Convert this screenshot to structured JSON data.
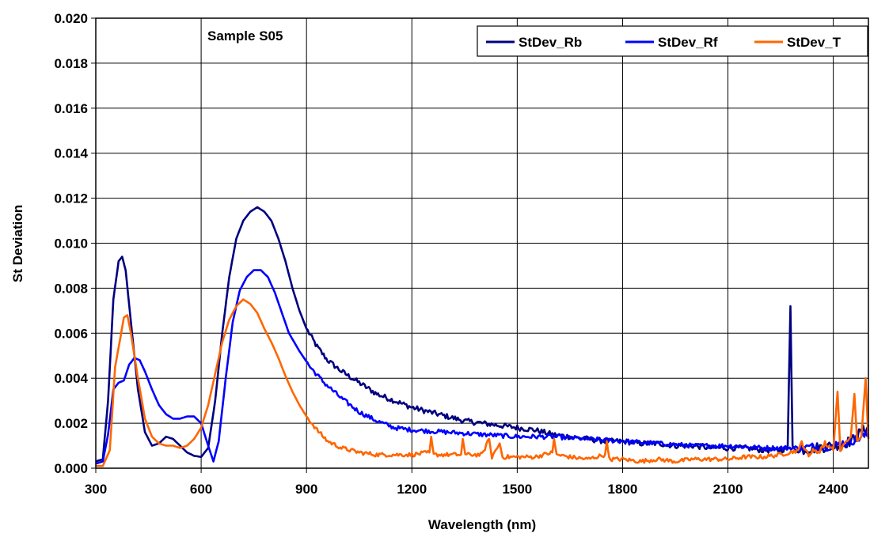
{
  "chart_data": {
    "type": "line",
    "annotation": "Sample S05",
    "xlabel": "Wavelength (nm)",
    "ylabel": "St Deviation",
    "xlim": [
      300,
      2500
    ],
    "ylim": [
      0,
      0.02
    ],
    "x_ticks": [
      "300",
      "600",
      "900",
      "1200",
      "1500",
      "1800",
      "2100",
      "2400"
    ],
    "y_ticks": [
      "0.000",
      "0.002",
      "0.004",
      "0.006",
      "0.008",
      "0.010",
      "0.012",
      "0.014",
      "0.016",
      "0.018",
      "0.020"
    ],
    "grid": true,
    "legend_position": "top-right",
    "series": [
      {
        "name": "StDev_Rb",
        "color": "#000080",
        "points": [
          [
            300,
            0.0003
          ],
          [
            320,
            0.0004
          ],
          [
            335,
            0.003
          ],
          [
            350,
            0.0075
          ],
          [
            365,
            0.0092
          ],
          [
            375,
            0.0094
          ],
          [
            385,
            0.0088
          ],
          [
            400,
            0.0065
          ],
          [
            420,
            0.0035
          ],
          [
            440,
            0.0016
          ],
          [
            460,
            0.001
          ],
          [
            480,
            0.0011
          ],
          [
            500,
            0.0014
          ],
          [
            520,
            0.0013
          ],
          [
            540,
            0.001
          ],
          [
            560,
            0.0007
          ],
          [
            580,
            0.00055
          ],
          [
            600,
            0.0005
          ],
          [
            620,
            0.0009
          ],
          [
            640,
            0.003
          ],
          [
            660,
            0.006
          ],
          [
            680,
            0.0085
          ],
          [
            700,
            0.0102
          ],
          [
            720,
            0.011
          ],
          [
            740,
            0.0114
          ],
          [
            760,
            0.0116
          ],
          [
            780,
            0.0114
          ],
          [
            800,
            0.011
          ],
          [
            820,
            0.0102
          ],
          [
            840,
            0.0092
          ],
          [
            860,
            0.008
          ],
          [
            880,
            0.007
          ],
          [
            900,
            0.0062
          ],
          [
            930,
            0.0054
          ],
          [
            960,
            0.0048
          ],
          [
            1000,
            0.0043
          ],
          [
            1050,
            0.0038
          ],
          [
            1100,
            0.0033
          ],
          [
            1150,
            0.003
          ],
          [
            1200,
            0.0027
          ],
          [
            1250,
            0.0025
          ],
          [
            1300,
            0.0023
          ],
          [
            1350,
            0.0021
          ],
          [
            1400,
            0.002
          ],
          [
            1450,
            0.0019
          ],
          [
            1500,
            0.0018
          ],
          [
            1550,
            0.0017
          ],
          [
            1600,
            0.0015
          ],
          [
            1650,
            0.0014
          ],
          [
            1700,
            0.0013
          ],
          [
            1750,
            0.0012
          ],
          [
            1800,
            0.0012
          ],
          [
            1850,
            0.0011
          ],
          [
            1900,
            0.0011
          ],
          [
            1950,
            0.001
          ],
          [
            2000,
            0.001
          ],
          [
            2050,
            0.0009
          ],
          [
            2100,
            0.0009
          ],
          [
            2150,
            0.0009
          ],
          [
            2200,
            0.0008
          ],
          [
            2250,
            0.0008
          ],
          [
            2270,
            0.0009
          ],
          [
            2278,
            0.0072
          ],
          [
            2284,
            0.0009
          ],
          [
            2300,
            0.0008
          ],
          [
            2350,
            0.0009
          ],
          [
            2400,
            0.001
          ],
          [
            2450,
            0.0012
          ],
          [
            2500,
            0.0019
          ]
        ]
      },
      {
        "name": "StDev_Rf",
        "color": "#0000ff",
        "points": [
          [
            300,
            0.0002
          ],
          [
            320,
            0.0003
          ],
          [
            335,
            0.0015
          ],
          [
            350,
            0.0035
          ],
          [
            365,
            0.0038
          ],
          [
            380,
            0.0039
          ],
          [
            395,
            0.0046
          ],
          [
            410,
            0.0049
          ],
          [
            425,
            0.0048
          ],
          [
            440,
            0.0043
          ],
          [
            460,
            0.0035
          ],
          [
            480,
            0.0028
          ],
          [
            500,
            0.0024
          ],
          [
            520,
            0.0022
          ],
          [
            540,
            0.0022
          ],
          [
            560,
            0.0023
          ],
          [
            580,
            0.0023
          ],
          [
            600,
            0.002
          ],
          [
            620,
            0.001
          ],
          [
            635,
            0.0003
          ],
          [
            650,
            0.0012
          ],
          [
            670,
            0.004
          ],
          [
            690,
            0.0065
          ],
          [
            710,
            0.0079
          ],
          [
            730,
            0.0085
          ],
          [
            750,
            0.0088
          ],
          [
            770,
            0.0088
          ],
          [
            790,
            0.0085
          ],
          [
            810,
            0.0078
          ],
          [
            830,
            0.0069
          ],
          [
            850,
            0.006
          ],
          [
            880,
            0.0052
          ],
          [
            910,
            0.0045
          ],
          [
            950,
            0.0038
          ],
          [
            1000,
            0.0031
          ],
          [
            1050,
            0.0025
          ],
          [
            1100,
            0.0021
          ],
          [
            1150,
            0.0018
          ],
          [
            1200,
            0.0017
          ],
          [
            1300,
            0.0016
          ],
          [
            1400,
            0.0015
          ],
          [
            1500,
            0.0014
          ],
          [
            1600,
            0.0014
          ],
          [
            1700,
            0.0013
          ],
          [
            1800,
            0.0012
          ],
          [
            1900,
            0.0011
          ],
          [
            2000,
            0.001
          ],
          [
            2100,
            0.001
          ],
          [
            2200,
            0.0009
          ],
          [
            2300,
            0.0009
          ],
          [
            2400,
            0.001
          ],
          [
            2450,
            0.0012
          ],
          [
            2500,
            0.0015
          ]
        ]
      },
      {
        "name": "StDev_T",
        "color": "#ff6600",
        "points": [
          [
            300,
            0.0001
          ],
          [
            320,
            0.0001
          ],
          [
            340,
            0.0008
          ],
          [
            355,
            0.0045
          ],
          [
            370,
            0.0058
          ],
          [
            380,
            0.0067
          ],
          [
            390,
            0.0068
          ],
          [
            400,
            0.006
          ],
          [
            420,
            0.004
          ],
          [
            440,
            0.0022
          ],
          [
            460,
            0.0014
          ],
          [
            480,
            0.0011
          ],
          [
            500,
            0.001
          ],
          [
            520,
            0.001
          ],
          [
            540,
            0.0009
          ],
          [
            560,
            0.001
          ],
          [
            580,
            0.0013
          ],
          [
            600,
            0.0018
          ],
          [
            620,
            0.0028
          ],
          [
            640,
            0.0042
          ],
          [
            660,
            0.0056
          ],
          [
            680,
            0.0066
          ],
          [
            700,
            0.0072
          ],
          [
            720,
            0.0075
          ],
          [
            740,
            0.0073
          ],
          [
            760,
            0.0069
          ],
          [
            780,
            0.0062
          ],
          [
            800,
            0.0056
          ],
          [
            820,
            0.0049
          ],
          [
            840,
            0.0041
          ],
          [
            860,
            0.0034
          ],
          [
            880,
            0.0028
          ],
          [
            900,
            0.0023
          ],
          [
            930,
            0.0017
          ],
          [
            960,
            0.0012
          ],
          [
            1000,
            0.0009
          ],
          [
            1050,
            0.0007
          ],
          [
            1100,
            0.0006
          ],
          [
            1150,
            0.0006
          ],
          [
            1200,
            0.0006
          ],
          [
            1250,
            0.0007
          ],
          [
            1255,
            0.0014
          ],
          [
            1262,
            0.0006
          ],
          [
            1300,
            0.0006
          ],
          [
            1340,
            0.0006
          ],
          [
            1345,
            0.0013
          ],
          [
            1352,
            0.0006
          ],
          [
            1400,
            0.0006
          ],
          [
            1420,
            0.0013
          ],
          [
            1428,
            0.0005
          ],
          [
            1450,
            0.0011
          ],
          [
            1458,
            0.0005
          ],
          [
            1500,
            0.0005
          ],
          [
            1550,
            0.0005
          ],
          [
            1600,
            0.0007
          ],
          [
            1605,
            0.0013
          ],
          [
            1612,
            0.0006
          ],
          [
            1650,
            0.0005
          ],
          [
            1700,
            0.0004
          ],
          [
            1750,
            0.0006
          ],
          [
            1755,
            0.0012
          ],
          [
            1762,
            0.0004
          ],
          [
            1800,
            0.0004
          ],
          [
            1850,
            0.0003
          ],
          [
            1900,
            0.0004
          ],
          [
            1950,
            0.0003
          ],
          [
            2000,
            0.0004
          ],
          [
            2050,
            0.0004
          ],
          [
            2100,
            0.0004
          ],
          [
            2150,
            0.0005
          ],
          [
            2200,
            0.0005
          ],
          [
            2250,
            0.0006
          ],
          [
            2300,
            0.0008
          ],
          [
            2310,
            0.0012
          ],
          [
            2318,
            0.0007
          ],
          [
            2350,
            0.0007
          ],
          [
            2380,
            0.0011
          ],
          [
            2400,
            0.0008
          ],
          [
            2412,
            0.0034
          ],
          [
            2420,
            0.0009
          ],
          [
            2440,
            0.0012
          ],
          [
            2450,
            0.0014
          ],
          [
            2460,
            0.0033
          ],
          [
            2468,
            0.0012
          ],
          [
            2480,
            0.0014
          ],
          [
            2492,
            0.004
          ],
          [
            2500,
            0.0013
          ]
        ]
      }
    ]
  }
}
